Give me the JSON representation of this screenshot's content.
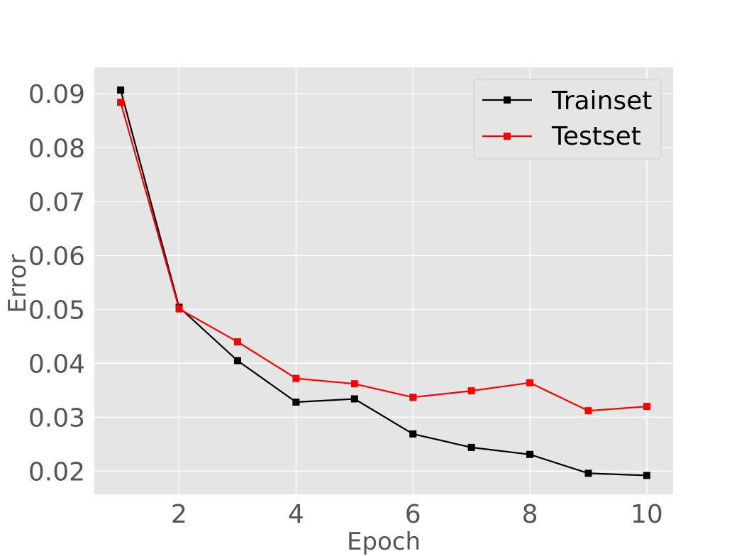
{
  "chart_data": {
    "type": "line",
    "title": "",
    "xlabel": "Epoch",
    "ylabel": "Error",
    "xlim": [
      0.55,
      10.45
    ],
    "ylim": [
      0.0157,
      0.0949
    ],
    "xticks": [
      2,
      4,
      6,
      8,
      10
    ],
    "yticks": [
      0.02,
      0.03,
      0.04,
      0.05,
      0.06,
      0.07,
      0.08,
      0.09
    ],
    "ytick_labels": [
      "0.02",
      "0.03",
      "0.04",
      "0.05",
      "0.06",
      "0.07",
      "0.08",
      "0.09"
    ],
    "grid": true,
    "legend_position": "top-right",
    "x": [
      1,
      2,
      3,
      4,
      5,
      6,
      7,
      8,
      9,
      10
    ],
    "series": [
      {
        "name": "Trainset",
        "color": "#000000",
        "marker": "square",
        "values": [
          0.0907,
          0.0504,
          0.0405,
          0.0328,
          0.0334,
          0.0269,
          0.0244,
          0.0231,
          0.0196,
          0.0192
        ]
      },
      {
        "name": "Testset",
        "color": "#ff0000",
        "marker": "square",
        "values": [
          0.0884,
          0.0501,
          0.044,
          0.0372,
          0.0362,
          0.0337,
          0.0349,
          0.0364,
          0.0312,
          0.032
        ]
      }
    ]
  }
}
